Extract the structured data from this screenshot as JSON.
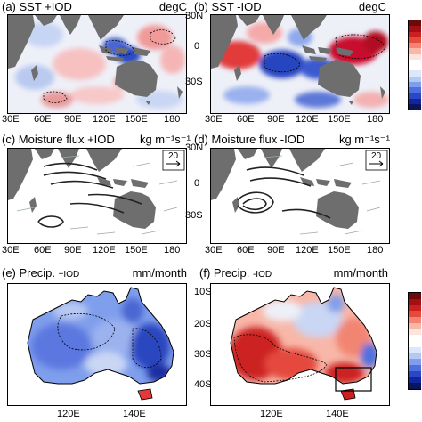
{
  "panels": {
    "a": {
      "title": "(a) SST +IOD",
      "unit": "degC"
    },
    "b": {
      "title": "(b) SST -IOD",
      "unit": "degC"
    },
    "c": {
      "title": "(c) Moisture flux +IOD",
      "unit": "kg m⁻¹s⁻¹"
    },
    "d": {
      "title": "(d) Moisture flux -IOD",
      "unit": "kg m⁻¹s⁻¹"
    },
    "e": {
      "title_main": "(e) Precip.",
      "title_sub": "+IOD",
      "unit": "mm/month"
    },
    "f": {
      "title_main": "(f) Precip.",
      "title_sub": "-IOD",
      "unit": "mm/month"
    }
  },
  "axes": {
    "lon_top": [
      "30E",
      "60E",
      "90E",
      "120E",
      "150E",
      "180"
    ],
    "lat_top": [
      "30N",
      "0",
      "30S"
    ],
    "lat_bottom": [
      "10S",
      "20S",
      "30S",
      "40S"
    ],
    "lon_bottom": [
      "120E",
      "140E"
    ]
  },
  "reference_vector": {
    "value": "20"
  },
  "colors": {
    "land": "#6e6e6e",
    "red_strong": "#c8102e",
    "red_light": "#f4a6a6",
    "blue_strong": "#1c3fb8",
    "blue_light": "#a9bff2",
    "neutral": "#eef0f8"
  },
  "colorbar": [
    "#6b0a0a",
    "#a40f14",
    "#cc2020",
    "#e54a3c",
    "#f28572",
    "#f8b7a8",
    "#fde4dc",
    "#ffffff",
    "#ffffff",
    "#dde7fb",
    "#b3c8f5",
    "#7f9eec",
    "#4d6fe0",
    "#2947c6",
    "#12259a",
    "#0a1560"
  ]
}
